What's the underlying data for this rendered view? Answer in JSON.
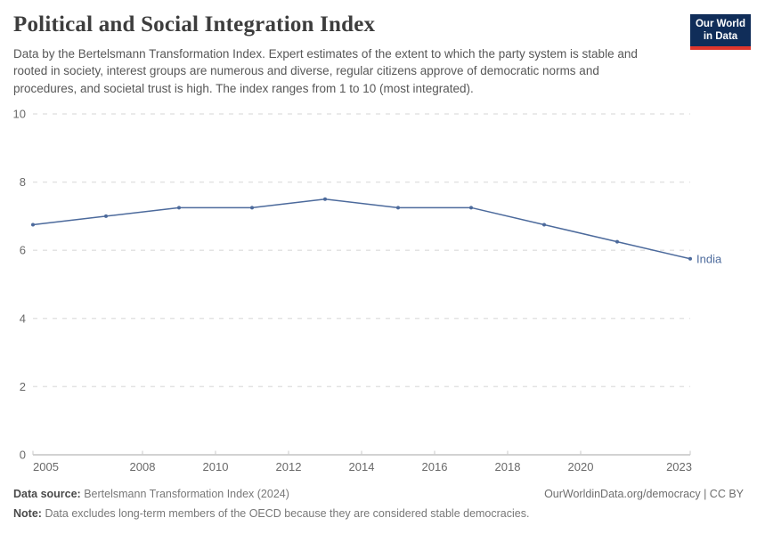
{
  "header": {
    "title": "Political and Social Integration Index",
    "subtitle": "Data by the Bertelsmann Transformation Index. Expert estimates of the extent to which the party system is stable and rooted in society, interest groups are numerous and diverse, regular citizens approve of democratic norms and procedures, and societal trust is high. The index ranges from 1 to 10 (most integrated).",
    "logo": {
      "line1": "Our World",
      "line2": "in Data"
    }
  },
  "chart_data": {
    "type": "line",
    "title": "Political and Social Integration Index",
    "xlabel": "",
    "ylabel": "",
    "xlim": [
      2005,
      2023
    ],
    "ylim": [
      0,
      10
    ],
    "x_ticks": [
      2005,
      2008,
      2010,
      2012,
      2014,
      2016,
      2018,
      2020,
      2023
    ],
    "y_ticks": [
      0,
      2,
      4,
      6,
      8,
      10
    ],
    "grid": "horizontal-dashed",
    "legend_position": "end-of-line-label",
    "series": [
      {
        "name": "India",
        "color": "#4c6a9c",
        "x": [
          2005,
          2007,
          2009,
          2011,
          2013,
          2015,
          2017,
          2019,
          2021,
          2023
        ],
        "values": [
          6.75,
          7.0,
          7.25,
          7.25,
          7.5,
          7.25,
          7.25,
          6.75,
          6.25,
          5.75
        ]
      }
    ]
  },
  "footer": {
    "source_label": "Data source:",
    "source_text": "Bertelsmann Transformation Index (2024)",
    "link": "OurWorldinData.org/democracy | CC BY",
    "note_label": "Note:",
    "note_text": "Data excludes long-term members of the OECD because they are considered stable democracies."
  },
  "colors": {
    "series_accent": "#4c6a9c",
    "logo_bg": "#102d59",
    "logo_red": "#e0362c",
    "grid_line": "#e3e3e3",
    "axis_line": "#a5a5a5",
    "tick_text": "#696969",
    "title_text": "#3d3d3d"
  }
}
